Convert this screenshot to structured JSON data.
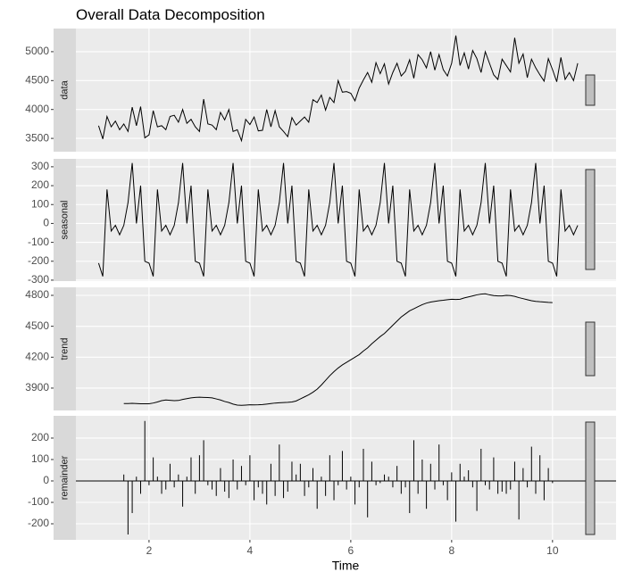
{
  "chart_data": {
    "type": "line",
    "title": "Overall Data Decomposition",
    "x_label": "Time",
    "xlim": [
      0.55,
      11.26
    ],
    "xticks": [
      2,
      4,
      6,
      8,
      10
    ],
    "grid": true,
    "color": "#000000",
    "x": [
      1,
      1.0833,
      1.1667,
      1.25,
      1.3333,
      1.4167,
      1.5,
      1.5833,
      1.6667,
      1.75,
      1.8333,
      1.9167,
      2,
      2.0833,
      2.1667,
      2.25,
      2.3333,
      2.4167,
      2.5,
      2.5833,
      2.6667,
      2.75,
      2.8333,
      2.9167,
      3,
      3.0833,
      3.1667,
      3.25,
      3.3333,
      3.4167,
      3.5,
      3.5833,
      3.6667,
      3.75,
      3.8333,
      3.9167,
      4,
      4.0833,
      4.1667,
      4.25,
      4.3333,
      4.4167,
      4.5,
      4.5833,
      4.6667,
      4.75,
      4.8333,
      4.9167,
      5,
      5.0833,
      5.1667,
      5.25,
      5.3333,
      5.4167,
      5.5,
      5.5833,
      5.6667,
      5.75,
      5.8333,
      5.9167,
      6,
      6.0833,
      6.1667,
      6.25,
      6.3333,
      6.4167,
      6.5,
      6.5833,
      6.6667,
      6.75,
      6.8333,
      6.9167,
      7,
      7.0833,
      7.1667,
      7.25,
      7.3333,
      7.4167,
      7.5,
      7.5833,
      7.6667,
      7.75,
      7.8333,
      7.9167,
      8,
      8.0833,
      8.1667,
      8.25,
      8.3333,
      8.4167,
      8.5,
      8.5833,
      8.6667,
      8.75,
      8.8333,
      8.9167,
      9,
      9.0833,
      9.1667,
      9.25,
      9.3333,
      9.4167,
      9.5,
      9.5833,
      9.6667,
      9.75,
      9.8333,
      9.9167,
      10,
      10.0833,
      10.1667,
      10.25,
      10.3333,
      10.4167,
      10.5
    ],
    "panels": [
      {
        "name": "data",
        "type": "line",
        "ylim": [
          3270,
          5400
        ],
        "yticks": [
          3500,
          4000,
          4500,
          5000
        ],
        "values": [
          3720,
          3490,
          3880,
          3700,
          3800,
          3650,
          3750,
          3620,
          4040,
          3720,
          4050,
          3510,
          3560,
          3980,
          3700,
          3720,
          3650,
          3880,
          3900,
          3780,
          4000,
          3760,
          3830,
          3700,
          3620,
          4180,
          3750,
          3730,
          3650,
          3950,
          3820,
          4000,
          3620,
          3650,
          3460,
          3830,
          3740,
          3870,
          3630,
          3640,
          4000,
          3700,
          3980,
          3700,
          3620,
          3530,
          3860,
          3730,
          3800,
          3870,
          3780,
          4170,
          4120,
          4250,
          3990,
          4210,
          4120,
          4500,
          4300,
          4310,
          4280,
          4150,
          4370,
          4510,
          4640,
          4470,
          4810,
          4620,
          4790,
          4440,
          4640,
          4800,
          4580,
          4660,
          4860,
          4540,
          4950,
          4860,
          4720,
          5000,
          4680,
          4950,
          4690,
          4580,
          4800,
          5280,
          4760,
          4980,
          4700,
          5020,
          4880,
          4640,
          5000,
          4800,
          4600,
          4520,
          4870,
          4760,
          4650,
          5240,
          4800,
          4960,
          4550,
          4870,
          4720,
          4600,
          4490,
          4880,
          4690,
          4480,
          4900,
          4520,
          4640,
          4500,
          4800
        ]
      },
      {
        "name": "seasonal",
        "type": "line",
        "ylim": [
          -305,
          342
        ],
        "yticks": [
          -300,
          -200,
          -100,
          0,
          100,
          200,
          300
        ],
        "values": [
          -210,
          -280,
          180,
          -40,
          -10,
          -60,
          -10,
          110,
          320,
          0,
          200,
          -200,
          -210,
          -280,
          180,
          -40,
          -10,
          -60,
          -10,
          110,
          320,
          0,
          200,
          -200,
          -210,
          -280,
          180,
          -40,
          -10,
          -60,
          -10,
          110,
          320,
          0,
          200,
          -200,
          -210,
          -280,
          180,
          -40,
          -10,
          -60,
          -10,
          110,
          320,
          0,
          200,
          -200,
          -210,
          -280,
          180,
          -40,
          -10,
          -60,
          -10,
          110,
          320,
          0,
          200,
          -200,
          -210,
          -280,
          180,
          -40,
          -10,
          -60,
          -10,
          110,
          320,
          0,
          200,
          -200,
          -210,
          -280,
          180,
          -40,
          -10,
          -60,
          -10,
          110,
          320,
          0,
          200,
          -200,
          -210,
          -280,
          180,
          -40,
          -10,
          -60,
          -10,
          110,
          320,
          0,
          200,
          -200,
          -210,
          -280,
          180,
          -40,
          -10,
          -60,
          -10,
          110,
          320,
          0,
          200,
          -200,
          -210,
          -280,
          180,
          -40,
          -10,
          -60,
          -10
        ]
      },
      {
        "name": "trend",
        "type": "line",
        "ylim": [
          3683,
          4878
        ],
        "yticks": [
          3900,
          4200,
          4500,
          4800
        ],
        "values": [
          null,
          null,
          null,
          null,
          null,
          null,
          3750,
          3750,
          3752,
          3750,
          3748,
          3748,
          3748,
          3755,
          3765,
          3778,
          3785,
          3782,
          3778,
          3780,
          3790,
          3798,
          3805,
          3810,
          3812,
          3810,
          3808,
          3805,
          3795,
          3785,
          3770,
          3760,
          3745,
          3735,
          3733,
          3735,
          3738,
          3737,
          3738,
          3740,
          3745,
          3750,
          3755,
          3758,
          3760,
          3762,
          3765,
          3775,
          3795,
          3815,
          3835,
          3860,
          3890,
          3930,
          3975,
          4020,
          4060,
          4095,
          4125,
          4150,
          4175,
          4200,
          4225,
          4260,
          4290,
          4330,
          4365,
          4400,
          4430,
          4470,
          4510,
          4550,
          4590,
          4620,
          4650,
          4670,
          4690,
          4710,
          4725,
          4735,
          4742,
          4748,
          4752,
          4758,
          4762,
          4760,
          4762,
          4775,
          4785,
          4795,
          4805,
          4812,
          4815,
          4805,
          4798,
          4795,
          4795,
          4800,
          4798,
          4790,
          4778,
          4768,
          4758,
          4748,
          4742,
          4738,
          4735,
          4732,
          4730,
          null,
          null,
          null,
          null,
          null,
          null
        ]
      },
      {
        "name": "remainder",
        "type": "segment",
        "ylim": [
          -275,
          304
        ],
        "yticks": [
          -200,
          -100,
          0,
          100,
          200
        ],
        "values": [
          null,
          null,
          null,
          null,
          null,
          null,
          30,
          -250,
          -150,
          20,
          -60,
          280,
          -20,
          110,
          20,
          -60,
          -40,
          80,
          -30,
          30,
          -120,
          20,
          110,
          -60,
          120,
          190,
          -20,
          -40,
          -70,
          60,
          -50,
          -80,
          100,
          -40,
          70,
          -20,
          120,
          -90,
          -30,
          -60,
          -110,
          80,
          -70,
          170,
          -80,
          -50,
          90,
          30,
          80,
          -70,
          -30,
          60,
          -130,
          20,
          -70,
          120,
          -90,
          -20,
          140,
          -40,
          20,
          -110,
          -30,
          150,
          -170,
          90,
          -20,
          -10,
          30,
          20,
          -30,
          70,
          -60,
          -30,
          -150,
          190,
          -60,
          100,
          -130,
          80,
          -40,
          170,
          -20,
          -90,
          40,
          -190,
          80,
          20,
          50,
          -30,
          -140,
          150,
          -20,
          -40,
          110,
          -60,
          -50,
          -60,
          -40,
          90,
          -180,
          60,
          -30,
          160,
          -60,
          120,
          -90,
          60,
          -10,
          null,
          null,
          null,
          null,
          null,
          null
        ]
      }
    ]
  }
}
